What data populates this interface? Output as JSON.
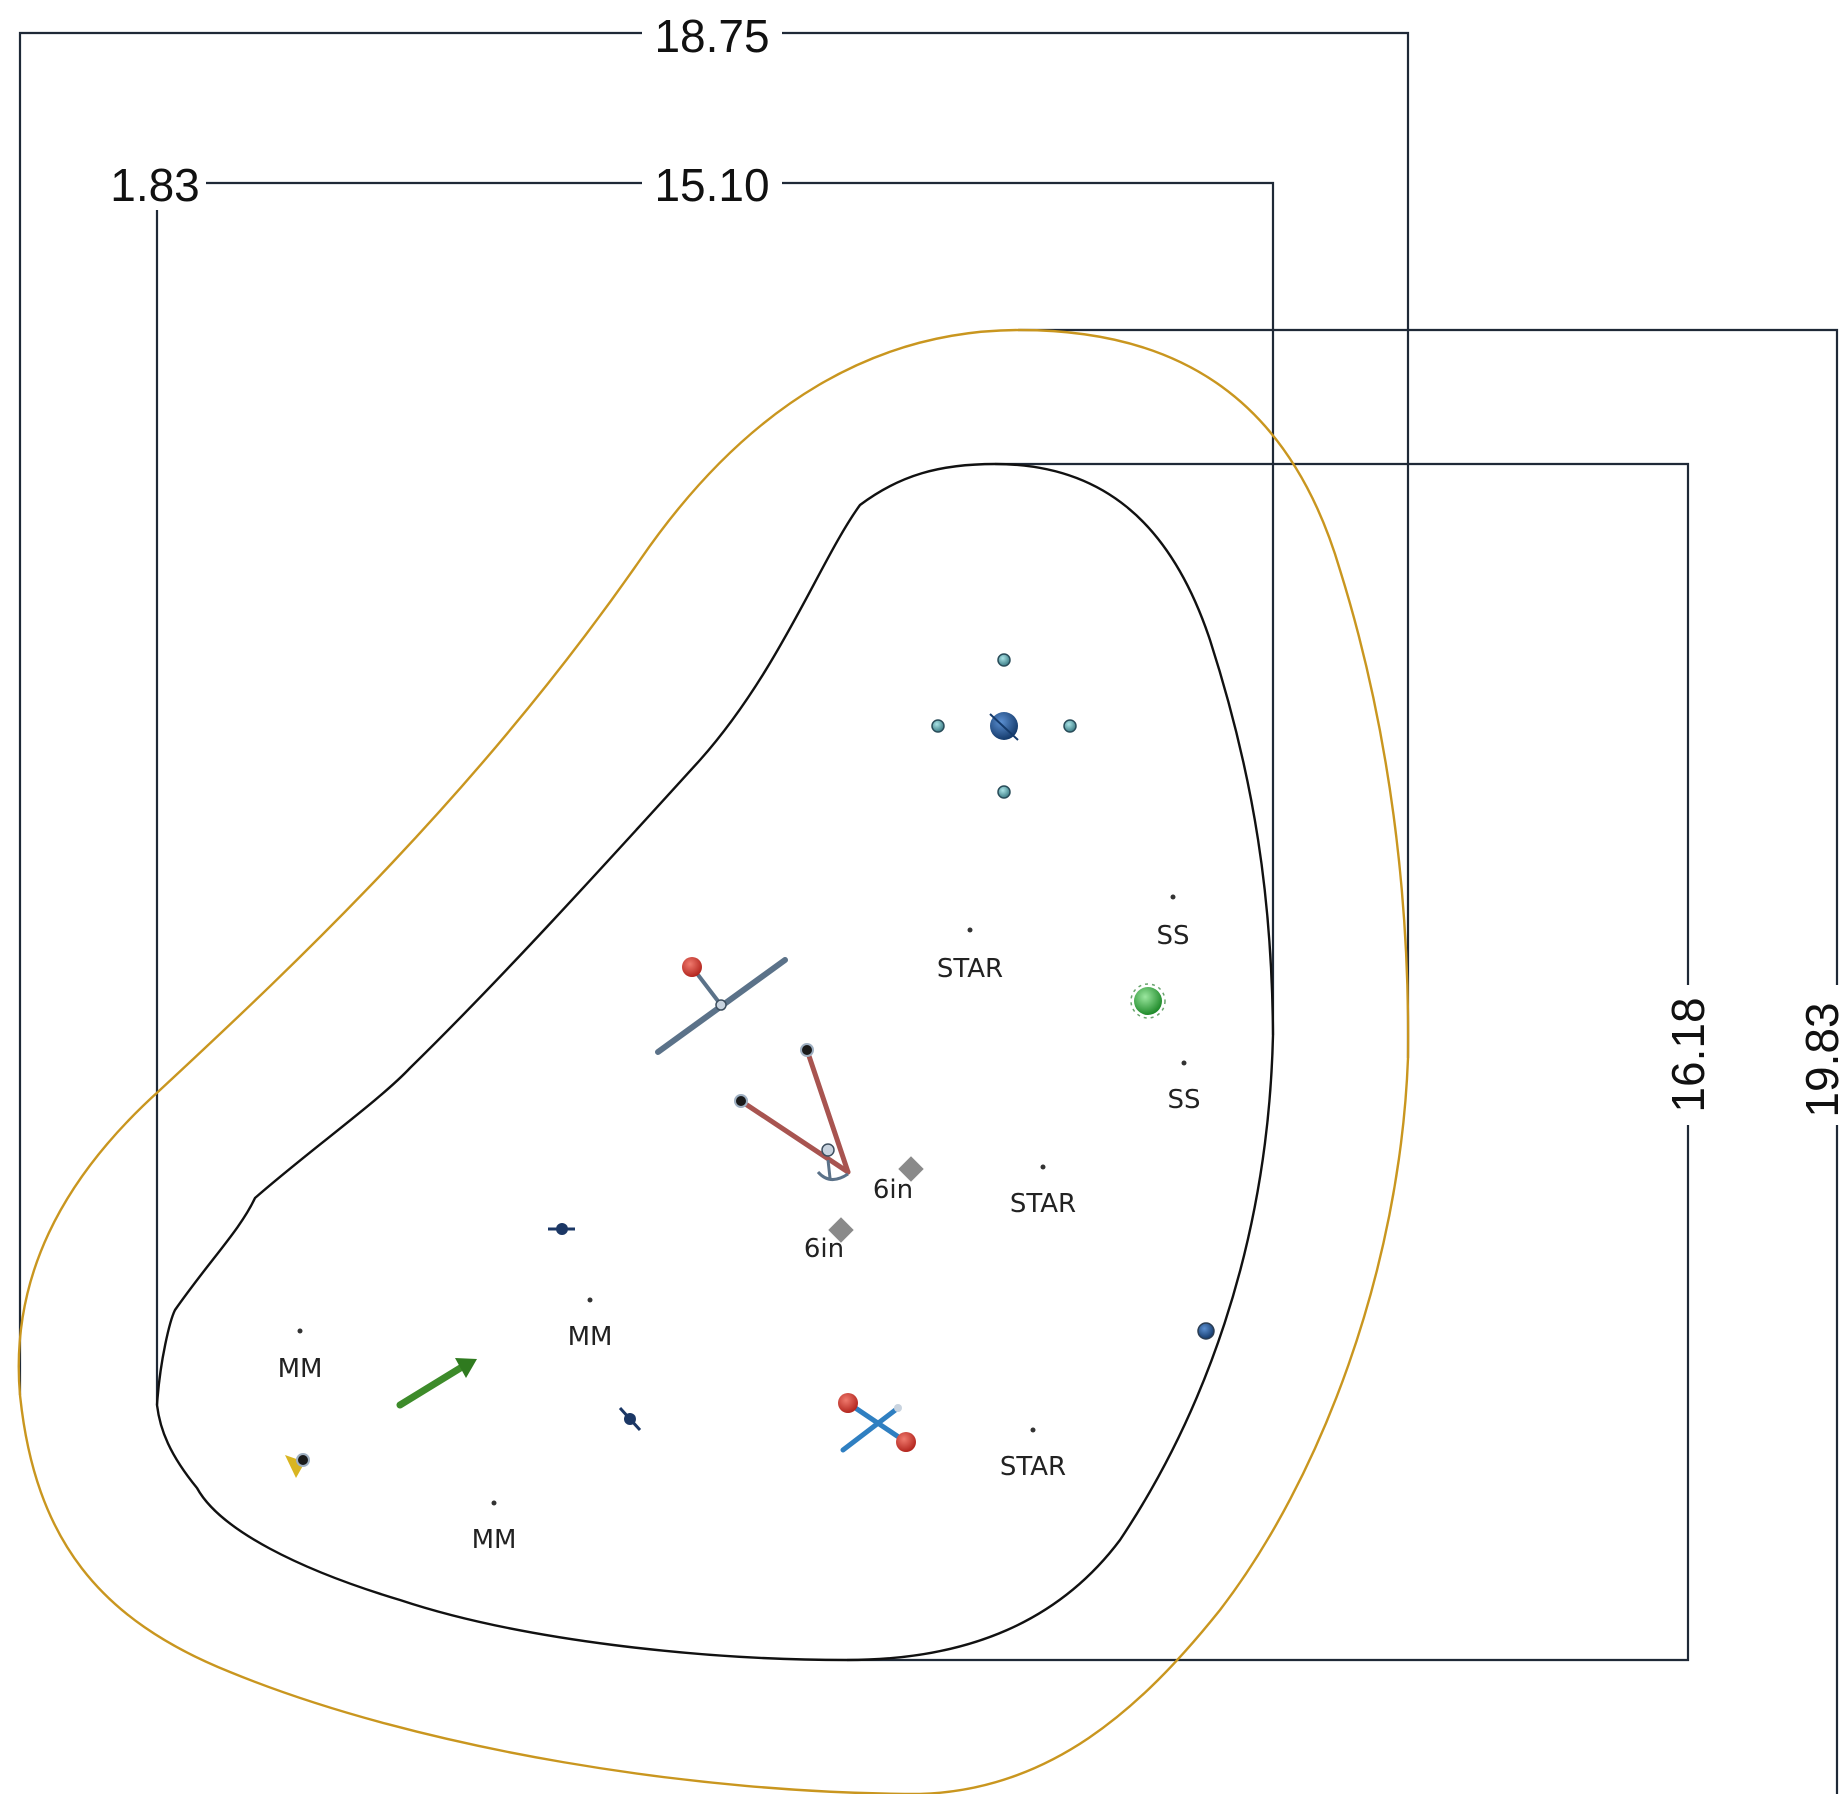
{
  "dimensions": {
    "outer_width": "18.75",
    "inner_width": "15.10",
    "inner_offset": "1.83",
    "inner_depth": "16.18",
    "outer_depth": "19.83"
  },
  "markers": {
    "star_1": "STAR",
    "star_2": "STAR",
    "star_3": "STAR",
    "ss_1": "SS",
    "ss_2": "SS",
    "six_in_1": "6in",
    "six_in_2": "6in",
    "mm_1": "MM",
    "mm_2": "MM",
    "mm_3": "MM"
  },
  "colors": {
    "outer_boundary": "#c9961f",
    "inner_boundary": "#111111",
    "dimension_line": "#1f2937",
    "stand_blue": "#1d4e89",
    "stand_red": "#c0392b",
    "stand_green": "#2e9e3a",
    "arrow_green": "#3d8b2a",
    "bar_slate": "#5b7289",
    "bar_red": "#a85450",
    "bar_blue": "#2f7fc1"
  },
  "icons": {
    "center_tree": "blue-sphere-icon",
    "satellite": "small-sphere-icon",
    "green_ball": "green-sphere-icon",
    "bolt_marker": "gray-diamond-icon",
    "arrow": "green-arrow-icon",
    "barbell": "barbell-icon"
  }
}
